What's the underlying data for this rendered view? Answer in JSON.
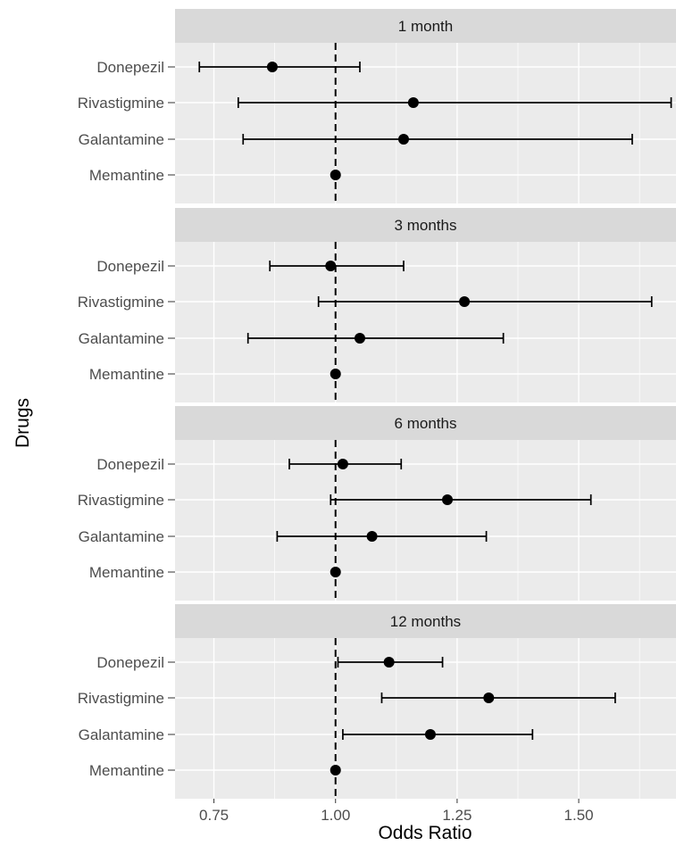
{
  "chart_data": {
    "type": "forest",
    "xlabel": "Odds Ratio",
    "ylabel": "Drugs",
    "xlim": [
      0.67,
      1.7
    ],
    "x_ticks": [
      0.75,
      1.0,
      1.25,
      1.5
    ],
    "x_tick_labels": [
      "0.75",
      "1.00",
      "1.25",
      "1.50"
    ],
    "reference_line": 1.0,
    "categories": [
      "Donepezil",
      "Rivastigmine",
      "Galantamine",
      "Memantine"
    ],
    "panels": [
      {
        "title": "1 month",
        "points": [
          {
            "drug": "Donepezil",
            "or": 0.87,
            "lower": 0.72,
            "upper": 1.05
          },
          {
            "drug": "Rivastigmine",
            "or": 1.16,
            "lower": 0.8,
            "upper": 1.69
          },
          {
            "drug": "Galantamine",
            "or": 1.14,
            "lower": 0.81,
            "upper": 1.61
          },
          {
            "drug": "Memantine",
            "or": 1.0,
            "lower": 1.0,
            "upper": 1.0
          }
        ]
      },
      {
        "title": "3 months",
        "points": [
          {
            "drug": "Donepezil",
            "or": 0.99,
            "lower": 0.865,
            "upper": 1.14
          },
          {
            "drug": "Rivastigmine",
            "or": 1.265,
            "lower": 0.965,
            "upper": 1.65
          },
          {
            "drug": "Galantamine",
            "or": 1.05,
            "lower": 0.82,
            "upper": 1.345
          },
          {
            "drug": "Memantine",
            "or": 1.0,
            "lower": 1.0,
            "upper": 1.0
          }
        ]
      },
      {
        "title": "6 months",
        "points": [
          {
            "drug": "Donepezil",
            "or": 1.015,
            "lower": 0.905,
            "upper": 1.135
          },
          {
            "drug": "Rivastigmine",
            "or": 1.23,
            "lower": 0.99,
            "upper": 1.525
          },
          {
            "drug": "Galantamine",
            "or": 1.075,
            "lower": 0.88,
            "upper": 1.31
          },
          {
            "drug": "Memantine",
            "or": 1.0,
            "lower": 1.0,
            "upper": 1.0
          }
        ]
      },
      {
        "title": "12 months",
        "points": [
          {
            "drug": "Donepezil",
            "or": 1.11,
            "lower": 1.005,
            "upper": 1.22
          },
          {
            "drug": "Rivastigmine",
            "or": 1.315,
            "lower": 1.095,
            "upper": 1.575
          },
          {
            "drug": "Galantamine",
            "or": 1.195,
            "lower": 1.015,
            "upper": 1.405
          },
          {
            "drug": "Memantine",
            "or": 1.0,
            "lower": 1.0,
            "upper": 1.0
          }
        ]
      }
    ],
    "grid": true,
    "legend": "none",
    "colors": {
      "panel_bg": "#ebebeb",
      "strip_bg": "#d9d9d9",
      "grid_major": "#ffffff",
      "mark": "#000000"
    }
  }
}
